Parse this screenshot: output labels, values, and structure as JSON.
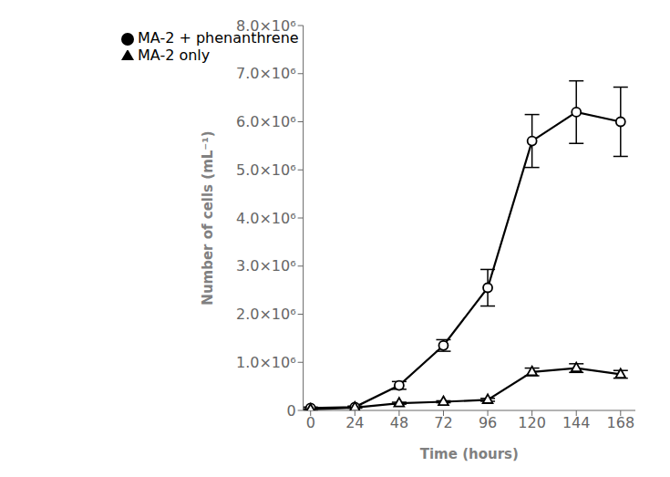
{
  "chart_data": {
    "type": "line",
    "x": [
      0,
      24,
      48,
      72,
      96,
      120,
      144,
      168
    ],
    "xlabel": "Time (hours)",
    "ylabel": "Number of cells (mL⁻¹)",
    "series": [
      {
        "name": "MA-2 + phenanthrene",
        "color": "#000000",
        "marker": "circle",
        "line_style": "solid",
        "values": [
          50000,
          70000,
          520000,
          1350000,
          2550000,
          5600000,
          6200000,
          6000000
        ],
        "errors": [
          20000,
          20000,
          80000,
          120000,
          380000,
          550000,
          650000,
          720000
        ]
      },
      {
        "name": "MA-2 only",
        "color": "#000000",
        "marker": "triangle",
        "line_style": "solid",
        "values": [
          20000,
          60000,
          150000,
          180000,
          220000,
          800000,
          880000,
          750000
        ],
        "errors": [
          10000,
          10000,
          20000,
          20000,
          30000,
          80000,
          90000,
          80000
        ]
      }
    ],
    "xlim": [
      -4,
      176
    ],
    "ylim": [
      0,
      8000000
    ],
    "xticks": [
      0,
      24,
      48,
      72,
      96,
      120,
      144,
      168
    ],
    "yticks": [
      0,
      {
        "value": 1000000,
        "label": "1.0×10⁶"
      },
      {
        "value": 2000000,
        "label": "2.0×10⁶"
      },
      {
        "value": 3000000,
        "label": "3.0×10⁶"
      },
      {
        "value": 4000000,
        "label": "4.0×10⁶"
      },
      {
        "value": 5000000,
        "label": "5.0×10⁶"
      },
      {
        "value": 6000000,
        "label": "6.0×10⁶"
      },
      {
        "value": 7000000,
        "label": "7.0×10⁶"
      },
      {
        "value": 8000000,
        "label": "8.0×10⁶"
      }
    ],
    "legend": "upper left",
    "grid": false
  }
}
